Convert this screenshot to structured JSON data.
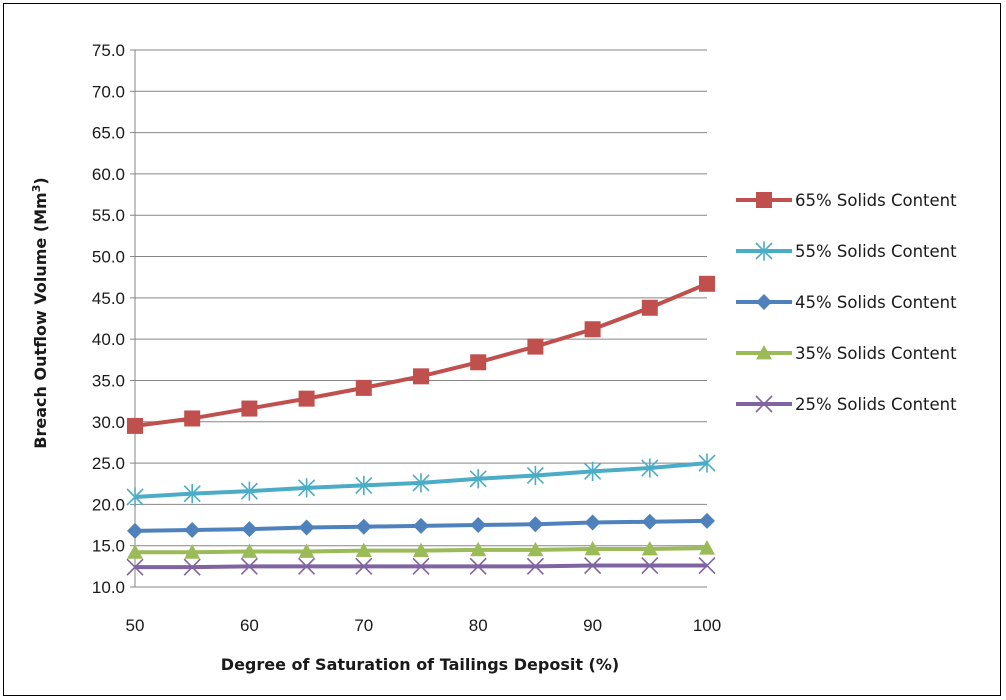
{
  "chart_data": {
    "type": "line",
    "title": "",
    "xlabel": "Degree of Saturation of Tailings Deposit (%)",
    "ylabel_main": "Breach Outflow Volume (Mm",
    "ylabel_sup": "3",
    "ylabel_tail": ")",
    "xlim": [
      50,
      100
    ],
    "ylim": [
      10,
      75
    ],
    "x_ticks": [
      "50",
      "60",
      "70",
      "80",
      "90",
      "100"
    ],
    "x_tick_values": [
      50,
      60,
      70,
      80,
      90,
      100
    ],
    "y_ticks": [
      "10.0",
      "15.0",
      "20.0",
      "25.0",
      "30.0",
      "35.0",
      "40.0",
      "45.0",
      "50.0",
      "55.0",
      "60.0",
      "65.0",
      "70.0",
      "75.0"
    ],
    "y_tick_values": [
      10,
      15,
      20,
      25,
      30,
      35,
      40,
      45,
      50,
      55,
      60,
      65,
      70,
      75
    ],
    "grid": "horizontal",
    "legend_position": "right",
    "x": [
      50,
      55,
      60,
      65,
      70,
      75,
      80,
      85,
      90,
      95,
      100
    ],
    "series": [
      {
        "name": "65% Solids Content",
        "color": "#c0504d",
        "marker": "square",
        "values": [
          29.5,
          30.4,
          31.6,
          32.8,
          34.1,
          35.5,
          37.2,
          39.1,
          41.2,
          43.8,
          46.7
        ]
      },
      {
        "name": "55% Solids Content",
        "color": "#4bacc6",
        "marker": "asterisk",
        "values": [
          20.9,
          21.3,
          21.6,
          22.0,
          22.3,
          22.6,
          23.1,
          23.5,
          24.0,
          24.4,
          25.0
        ]
      },
      {
        "name": "45% Solids Content",
        "color": "#4f81bd",
        "marker": "diamond",
        "values": [
          16.8,
          16.9,
          17.0,
          17.2,
          17.3,
          17.4,
          17.5,
          17.6,
          17.8,
          17.9,
          18.0
        ]
      },
      {
        "name": "35% Solids Content",
        "color": "#9bbb59",
        "marker": "triangle",
        "values": [
          14.2,
          14.2,
          14.3,
          14.3,
          14.4,
          14.4,
          14.5,
          14.5,
          14.6,
          14.6,
          14.7
        ]
      },
      {
        "name": "25% Solids Content",
        "color": "#8064a2",
        "marker": "x",
        "values": [
          12.4,
          12.4,
          12.5,
          12.5,
          12.5,
          12.5,
          12.5,
          12.5,
          12.6,
          12.6,
          12.6
        ]
      }
    ]
  }
}
